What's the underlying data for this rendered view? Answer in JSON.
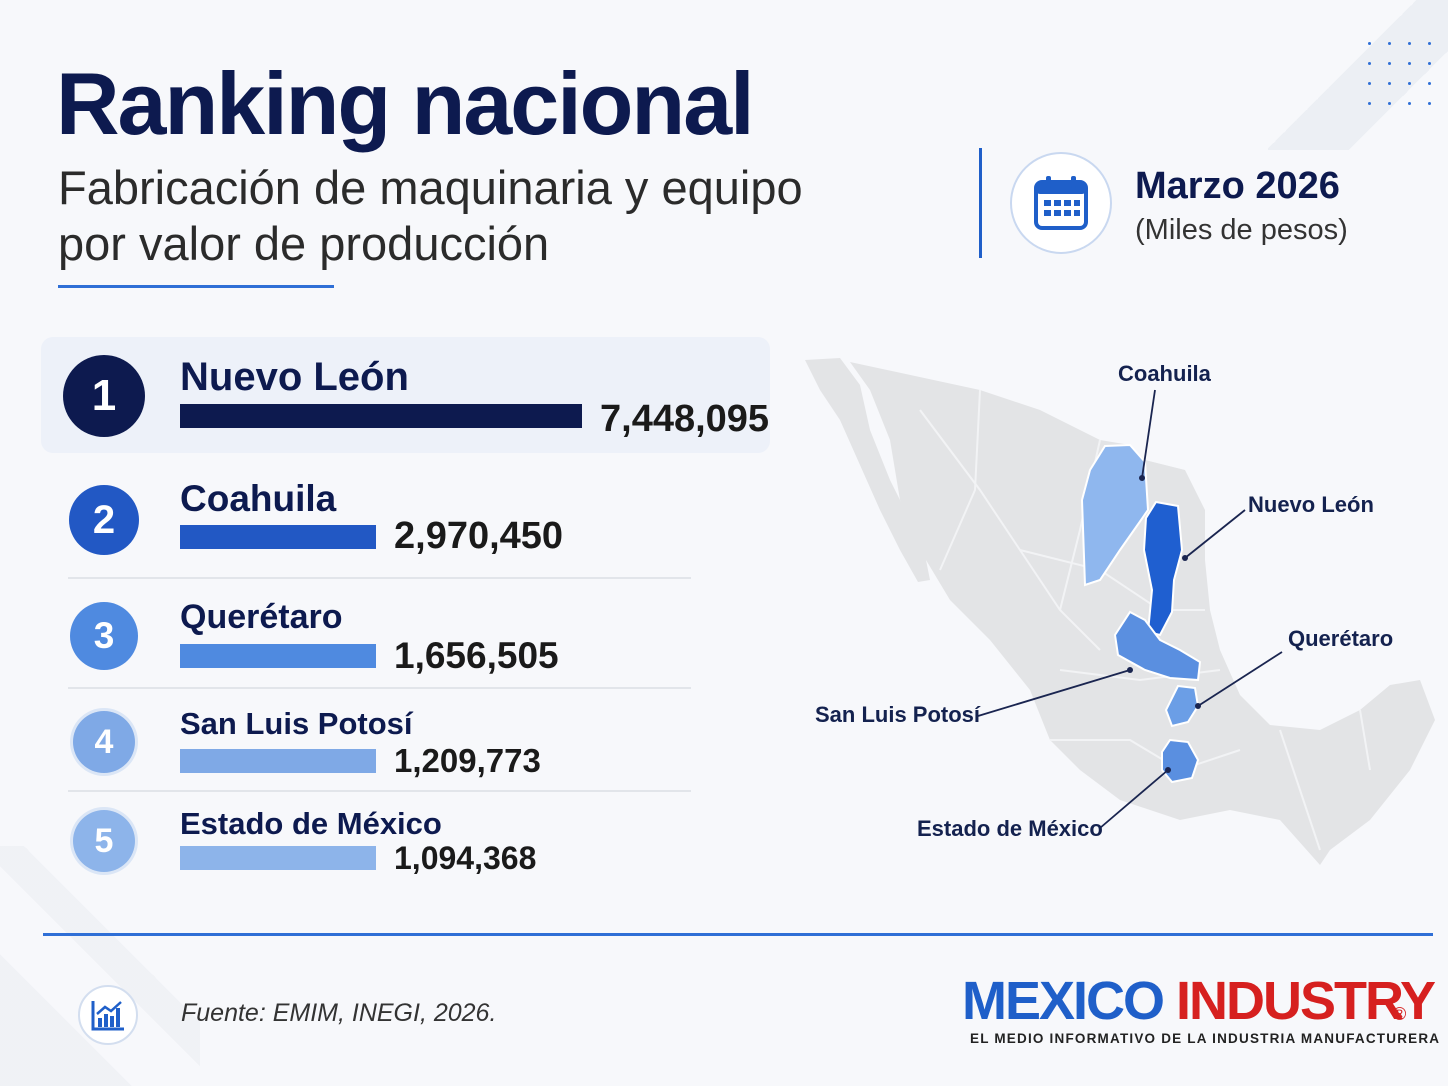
{
  "header": {
    "title": "Ranking nacional",
    "subtitle": "Fabricación de maquinaria y equipo por valor de producción",
    "date": "Marzo 2026",
    "units": "(Miles de pesos)",
    "calendar_icon": "calendar-icon"
  },
  "chart_data": {
    "type": "bar",
    "orientation": "horizontal",
    "title": "Ranking nacional",
    "subtitle": "Fabricación de maquinaria y equipo por valor de producción",
    "categories": [
      "Nuevo León",
      "Coahuila",
      "Querétaro",
      "San Luis Potosí",
      "Estado de México"
    ],
    "values": [
      7448095,
      2970450,
      1656505,
      1209773,
      1094368
    ],
    "value_labels": [
      "7,448,095",
      "2,970,450",
      "1,656,505",
      "1,209,773",
      "1,094,368"
    ],
    "ranks": [
      "1",
      "2",
      "3",
      "4",
      "5"
    ],
    "units": "(Miles de pesos)",
    "colors": [
      "#0d1a4f",
      "#2258c4",
      "#4f8ae0",
      "#7fa9e6",
      "#8db4ea"
    ],
    "highlight": "Nuevo León"
  },
  "map": {
    "labels": [
      "Coahuila",
      "Nuevo León",
      "Querétaro",
      "San Luis Potosí",
      "Estado de México"
    ],
    "highlight_colors": {
      "Coahuila": "#8fb7ee",
      "Nuevo León": "#1f5fd0",
      "Querétaro": "#6b9ee6",
      "San Luis Potosí": "#5a8fe0",
      "Estado de México": "#5a8fe0"
    },
    "base_color": "#e3e4e6"
  },
  "footer": {
    "source": "Fuente: EMIM, INEGI, 2026.",
    "source_icon": "chart-growth-icon",
    "brand_part1": "MEXICO",
    "brand_part2": "INDUSTRY",
    "brand_mark": "®",
    "tagline": "EL MEDIO INFORMATIVO DE LA INDUSTRIA MANUFACTURERA"
  }
}
